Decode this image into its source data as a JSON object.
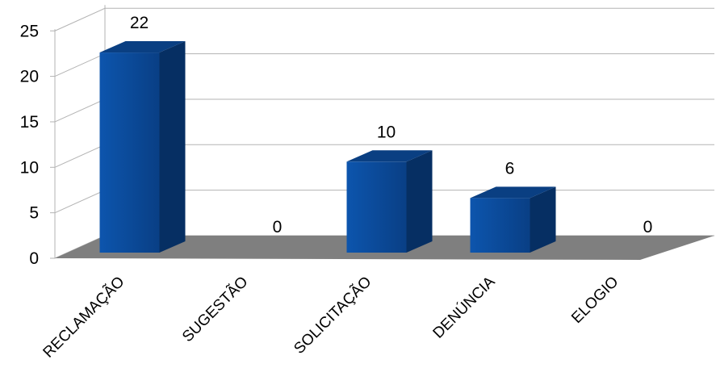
{
  "chart_data": {
    "type": "bar",
    "style": "3d-column",
    "categories": [
      "RECLAMAÇÃO",
      "SUGESTÃO",
      "SOLICITAÇÃO",
      "DENÚNCIA",
      "ELOGIO"
    ],
    "values": [
      22,
      0,
      10,
      6,
      0
    ],
    "ylim": [
      0,
      25
    ],
    "yticks": [
      0,
      5,
      10,
      15,
      20,
      25
    ],
    "grid": true,
    "legend": "none",
    "data_labels": true,
    "colors": {
      "bar_front": "#0b4a99",
      "bar_side": "#062f63",
      "bar_top": "#0a3f82",
      "floor": "#7f7f7f",
      "grid": "#b3b3b3"
    }
  }
}
